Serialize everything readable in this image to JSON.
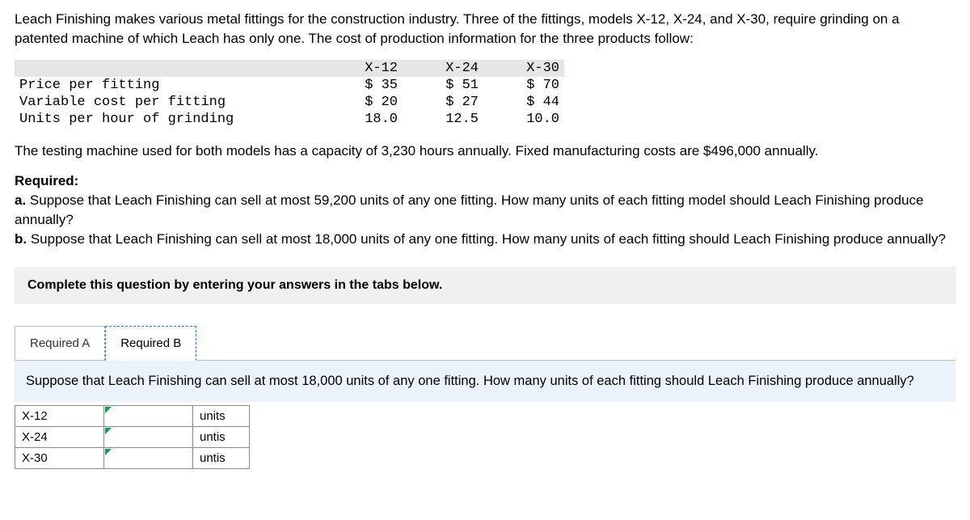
{
  "intro": "Leach Finishing makes various metal fittings for the construction industry. Three of the fittings, models X-12, X-24, and X-30, require grinding on a patented machine of which Leach has only one. The cost of production information for the three products follow:",
  "data_table": {
    "columns": [
      "X-12",
      "X-24",
      "X-30"
    ],
    "rows": [
      {
        "label": "Price per fitting",
        "vals": [
          "$ 35",
          "$ 51",
          "$ 70"
        ]
      },
      {
        "label": "Variable cost per fitting",
        "vals": [
          "$ 20",
          "$ 27",
          "$ 44"
        ]
      },
      {
        "label": "Units per hour of grinding",
        "vals": [
          "18.0",
          "12.5",
          "10.0"
        ]
      }
    ]
  },
  "mid": "The testing machine used for both models has a capacity of 3,230 hours annually. Fixed manufacturing costs are $496,000 annually.",
  "required": {
    "title": "Required:",
    "a_prefix": "a.",
    "a_text": " Suppose that Leach Finishing can sell at most 59,200 units of any one fitting. How many units of each fitting model should Leach Finishing produce annually?",
    "b_prefix": "b.",
    "b_text": " Suppose that Leach Finishing can sell at most 18,000 units of any one fitting. How many units of each fitting should Leach Finishing produce annually?"
  },
  "instr": "Complete this question by entering your answers in the tabs below.",
  "tabs": {
    "a": "Required A",
    "b": "Required B",
    "active": "b"
  },
  "question_b": "Suppose that Leach Finishing can sell at most 18,000 units of any one fitting. How many units of each fitting should Leach Finishing produce annually?",
  "answer_rows": [
    {
      "name": "X-12",
      "unit": "units"
    },
    {
      "name": "X-24",
      "unit": "untis"
    },
    {
      "name": "X-30",
      "unit": "untis"
    }
  ]
}
